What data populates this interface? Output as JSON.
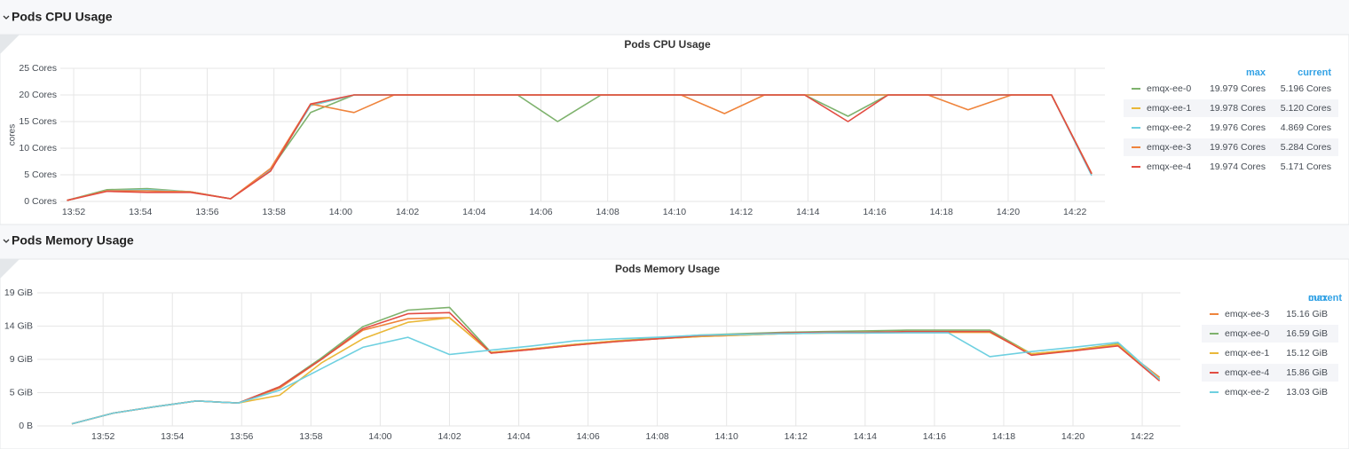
{
  "rows": [
    "Pods CPU Usage",
    "Pods Memory Usage"
  ],
  "chart_data": [
    {
      "type": "line",
      "title": "Pods CPU Usage",
      "y_label": "cores",
      "x": [
        831.8,
        833.0,
        834.2,
        835.5,
        836.7,
        837.9,
        839.1,
        840.4,
        841.6,
        842.8,
        844.1,
        845.3,
        846.5,
        847.8,
        849.0,
        850.2,
        851.5,
        852.7,
        853.9,
        855.2,
        856.4,
        857.6,
        858.8,
        860.1,
        861.3,
        862.5
      ],
      "xlim": [
        831.6,
        862.9
      ],
      "xticks": [
        {
          "value": 832,
          "label": "13:52"
        },
        {
          "value": 834,
          "label": "13:54"
        },
        {
          "value": 836,
          "label": "13:56"
        },
        {
          "value": 838,
          "label": "13:58"
        },
        {
          "value": 840,
          "label": "14:00"
        },
        {
          "value": 842,
          "label": "14:02"
        },
        {
          "value": 844,
          "label": "14:04"
        },
        {
          "value": 846,
          "label": "14:06"
        },
        {
          "value": 848,
          "label": "14:08"
        },
        {
          "value": 850,
          "label": "14:10"
        },
        {
          "value": 852,
          "label": "14:12"
        },
        {
          "value": 854,
          "label": "14:14"
        },
        {
          "value": 856,
          "label": "14:16"
        },
        {
          "value": 858,
          "label": "14:18"
        },
        {
          "value": 860,
          "label": "14:20"
        },
        {
          "value": 862,
          "label": "14:22"
        }
      ],
      "ylim": [
        0,
        25
      ],
      "yticks": [
        {
          "value": 0,
          "label": "0 Cores"
        },
        {
          "value": 5,
          "label": "5 Cores"
        },
        {
          "value": 10,
          "label": "10 Cores"
        },
        {
          "value": 15,
          "label": "15 Cores"
        },
        {
          "value": 20,
          "label": "20 Cores"
        },
        {
          "value": 25,
          "label": "25 Cores"
        }
      ],
      "grid": true,
      "legend_columns": [
        "max",
        "current"
      ],
      "series": [
        {
          "name": "emqx-ee-0",
          "color": "#7eb26d",
          "max": "19.979 Cores",
          "current": "5.196 Cores",
          "values": [
            0.2,
            2.2,
            2.4,
            1.8,
            0.5,
            6.0,
            16.7,
            20,
            20,
            20,
            20,
            20,
            15,
            20,
            20,
            20,
            20,
            20,
            20,
            16,
            20,
            20,
            20,
            20,
            20,
            5.196
          ]
        },
        {
          "name": "emqx-ee-1",
          "color": "#eab839",
          "max": "19.978 Cores",
          "current": "5.120 Cores",
          "values": [
            0.2,
            2.0,
            2.2,
            1.8,
            0.5,
            6.0,
            18.0,
            20,
            20,
            20,
            20,
            20,
            20,
            20,
            20,
            20,
            20,
            20,
            20,
            20,
            20,
            20,
            20,
            20,
            20,
            5.12
          ]
        },
        {
          "name": "emqx-ee-2",
          "color": "#6ed0e0",
          "max": "19.976 Cores",
          "current": "4.869 Cores",
          "values": [
            0.2,
            2.0,
            2.2,
            1.8,
            0.5,
            6.0,
            18.0,
            20,
            20,
            20,
            20,
            20,
            20,
            20,
            20,
            20,
            20,
            20,
            20,
            20,
            20,
            20,
            20,
            20,
            20,
            4.869
          ]
        },
        {
          "name": "emqx-ee-3",
          "color": "#ef843c",
          "max": "19.976 Cores",
          "current": "5.284 Cores",
          "values": [
            0.2,
            2.0,
            2.0,
            1.8,
            0.5,
            6.2,
            18.3,
            16.7,
            20,
            20,
            20,
            20,
            20,
            20,
            20,
            20,
            16.5,
            20,
            20,
            20,
            20,
            20,
            17.2,
            20,
            20,
            5.284
          ]
        },
        {
          "name": "emqx-ee-4",
          "color": "#e24d42",
          "max": "19.974 Cores",
          "current": "5.171 Cores",
          "values": [
            0.2,
            1.9,
            1.7,
            1.7,
            0.5,
            5.7,
            18.3,
            20,
            20,
            20,
            20,
            20,
            20,
            20,
            20,
            20,
            20,
            20,
            20,
            15,
            20,
            20,
            20,
            20,
            20,
            5.171
          ]
        }
      ]
    },
    {
      "type": "line",
      "title": "Pods Memory Usage",
      "x": [
        831.1,
        832.3,
        833.5,
        834.7,
        835.9,
        837.1,
        838.3,
        839.5,
        840.8,
        842.0,
        843.2,
        844.4,
        845.6,
        846.8,
        848.0,
        849.2,
        850.4,
        851.6,
        852.8,
        854.0,
        855.2,
        856.4,
        857.6,
        858.8,
        860.0,
        861.3,
        862.5
      ],
      "xlim": [
        830.1,
        863.1
      ],
      "xticks": [
        {
          "value": 832,
          "label": "13:52"
        },
        {
          "value": 834,
          "label": "13:54"
        },
        {
          "value": 836,
          "label": "13:56"
        },
        {
          "value": 838,
          "label": "13:58"
        },
        {
          "value": 840,
          "label": "14:00"
        },
        {
          "value": 842,
          "label": "14:02"
        },
        {
          "value": 844,
          "label": "14:04"
        },
        {
          "value": 846,
          "label": "14:06"
        },
        {
          "value": 848,
          "label": "14:08"
        },
        {
          "value": 850,
          "label": "14:10"
        },
        {
          "value": 852,
          "label": "14:12"
        },
        {
          "value": 854,
          "label": "14:14"
        },
        {
          "value": 856,
          "label": "14:16"
        },
        {
          "value": 858,
          "label": "14:18"
        },
        {
          "value": 860,
          "label": "14:20"
        },
        {
          "value": 862,
          "label": "14:22"
        }
      ],
      "ylim": [
        0,
        18.626
      ],
      "yticks": [
        {
          "value": 0,
          "label": "0 B"
        },
        {
          "value": 4.657,
          "label": "5 GiB"
        },
        {
          "value": 9.313,
          "label": "9 GiB"
        },
        {
          "value": 13.97,
          "label": "14 GiB"
        },
        {
          "value": 18.626,
          "label": "19 GiB"
        }
      ],
      "grid": true,
      "legend_columns": [
        "max",
        "current"
      ],
      "series": [
        {
          "name": "emqx-ee-3",
          "color": "#ef843c",
          "max": "15.16 GiB",
          "values": [
            0.3,
            1.8,
            2.7,
            3.5,
            3.2,
            5.3,
            9.3,
            13.4,
            15.0,
            15.16,
            10.2,
            10.7,
            11.3,
            11.8,
            12.2,
            12.5,
            12.7,
            12.9,
            13.0,
            13.0,
            13.1,
            13.1,
            13.1,
            10.0,
            10.5,
            11.3,
            6.8
          ]
        },
        {
          "name": "emqx-ee-0",
          "color": "#7eb26d",
          "max": "16.59 GiB",
          "values": [
            0.3,
            1.8,
            2.7,
            3.5,
            3.2,
            5.5,
            9.5,
            13.9,
            16.2,
            16.59,
            10.3,
            10.8,
            11.4,
            11.9,
            12.3,
            12.7,
            12.9,
            13.1,
            13.2,
            13.3,
            13.4,
            13.4,
            13.4,
            10.1,
            10.6,
            11.5,
            6.5
          ]
        },
        {
          "name": "emqx-ee-1",
          "color": "#eab839",
          "max": "15.12 GiB",
          "values": [
            0.3,
            1.8,
            2.7,
            3.5,
            3.2,
            4.3,
            8.8,
            12.2,
            14.5,
            15.12,
            10.3,
            10.8,
            11.4,
            11.9,
            12.2,
            12.5,
            12.7,
            12.9,
            13.0,
            13.1,
            13.1,
            13.1,
            13.1,
            10.1,
            10.6,
            11.4,
            6.6
          ]
        },
        {
          "name": "emqx-ee-4",
          "color": "#e24d42",
          "max": "15.86 GiB",
          "values": [
            0.3,
            1.8,
            2.7,
            3.5,
            3.2,
            5.5,
            9.3,
            13.6,
            15.7,
            15.86,
            10.2,
            10.7,
            11.3,
            11.8,
            12.2,
            12.6,
            12.8,
            13.0,
            13.1,
            13.1,
            13.2,
            13.2,
            13.2,
            9.9,
            10.5,
            11.2,
            6.3
          ]
        },
        {
          "name": "emqx-ee-2",
          "color": "#6ed0e0",
          "max": "13.03 GiB",
          "values": [
            0.3,
            1.8,
            2.7,
            3.5,
            3.2,
            5.0,
            8.0,
            11.0,
            12.4,
            10.0,
            10.6,
            11.2,
            11.9,
            12.2,
            12.4,
            12.7,
            12.8,
            12.9,
            13.0,
            13.0,
            13.03,
            13.03,
            9.7,
            10.4,
            11.0,
            11.7,
            6.5
          ]
        }
      ]
    }
  ]
}
